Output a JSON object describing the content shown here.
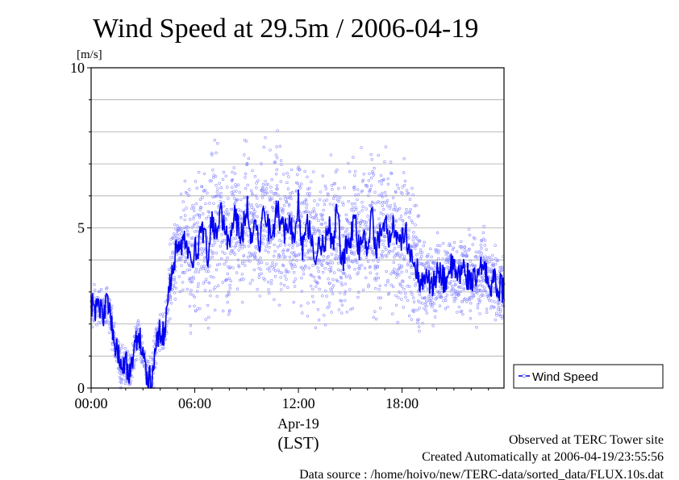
{
  "chart_data": {
    "type": "line",
    "title": "Wind Speed at 29.5m / 2006-04-19",
    "ylabel": "[m/s]",
    "ylim": [
      0,
      10
    ],
    "yticks": [
      "0",
      "5",
      "10"
    ],
    "xlim_hours": [
      0,
      23.9
    ],
    "xticks": [
      "00:00",
      "06:00",
      "12:00",
      "18:00"
    ],
    "date_label": "Apr-19",
    "xlabel": "(LST)",
    "grid": "horizontal every 1 m/s",
    "legend": {
      "position": "right-bottom",
      "entries": [
        "Wind Speed"
      ]
    },
    "colors": {
      "line": "#0000ee",
      "points": "#8c8cff"
    },
    "series": [
      {
        "name": "Wind Speed",
        "x": [
          0,
          0.25,
          0.5,
          0.75,
          1,
          1.25,
          1.5,
          1.75,
          2,
          2.25,
          2.5,
          2.75,
          3,
          3.25,
          3.5,
          3.75,
          4,
          4.25,
          4.5,
          4.75,
          5,
          5.25,
          5.5,
          5.75,
          6,
          6.25,
          6.5,
          6.75,
          7,
          7.25,
          7.5,
          7.75,
          8,
          8.25,
          8.5,
          8.75,
          9,
          9.25,
          9.5,
          9.75,
          10,
          10.25,
          10.5,
          10.75,
          11,
          11.25,
          11.5,
          11.75,
          12,
          12.25,
          12.5,
          12.75,
          13,
          13.25,
          13.5,
          13.75,
          14,
          14.25,
          14.5,
          14.75,
          15,
          15.25,
          15.5,
          15.75,
          16,
          16.25,
          16.5,
          16.75,
          17,
          17.25,
          17.5,
          17.75,
          18,
          18.25,
          18.5,
          18.75,
          19,
          19.25,
          19.5,
          19.75,
          20,
          20.25,
          20.5,
          20.75,
          21,
          21.25,
          21.5,
          21.75,
          22,
          22.25,
          22.5,
          22.75,
          23,
          23.25,
          23.5,
          23.75
        ],
        "y": [
          2.6,
          2.5,
          2.6,
          2.3,
          2.7,
          1.7,
          1.2,
          0.6,
          0.8,
          0.3,
          1.2,
          1.7,
          1.0,
          0.4,
          0.2,
          1.4,
          1.8,
          1.6,
          2.9,
          3.8,
          4.5,
          4.3,
          4.8,
          4.0,
          4.3,
          4.5,
          5.0,
          4.1,
          5.4,
          4.6,
          5.5,
          5.0,
          4.2,
          5.5,
          5.1,
          4.7,
          5.8,
          4.8,
          5.2,
          4.6,
          5.6,
          5.1,
          4.5,
          5.7,
          5.0,
          4.9,
          5.4,
          4.5,
          5.8,
          4.3,
          5.2,
          4.8,
          3.9,
          4.7,
          4.2,
          5.1,
          4.4,
          5.6,
          3.9,
          4.3,
          4.7,
          5.2,
          4.3,
          4.9,
          4.5,
          5.3,
          4.4,
          4.8,
          5.2,
          4.6,
          5.0,
          4.4,
          4.6,
          4.8,
          4.2,
          3.9,
          3.4,
          3.5,
          3.3,
          3.1,
          3.6,
          3.5,
          3.3,
          3.8,
          3.7,
          3.4,
          3.8,
          3.5,
          3.4,
          3.3,
          3.6,
          3.9,
          3.2,
          3.4,
          3.2,
          3.1
        ]
      }
    ]
  },
  "footer": {
    "observed": "Observed at TERC Tower site",
    "created": "Created Automatically at 2006-04-19/23:55:56",
    "source": "Data source : /home/hoivo/new/TERC-data/sorted_data/FLUX.10s.dat"
  }
}
